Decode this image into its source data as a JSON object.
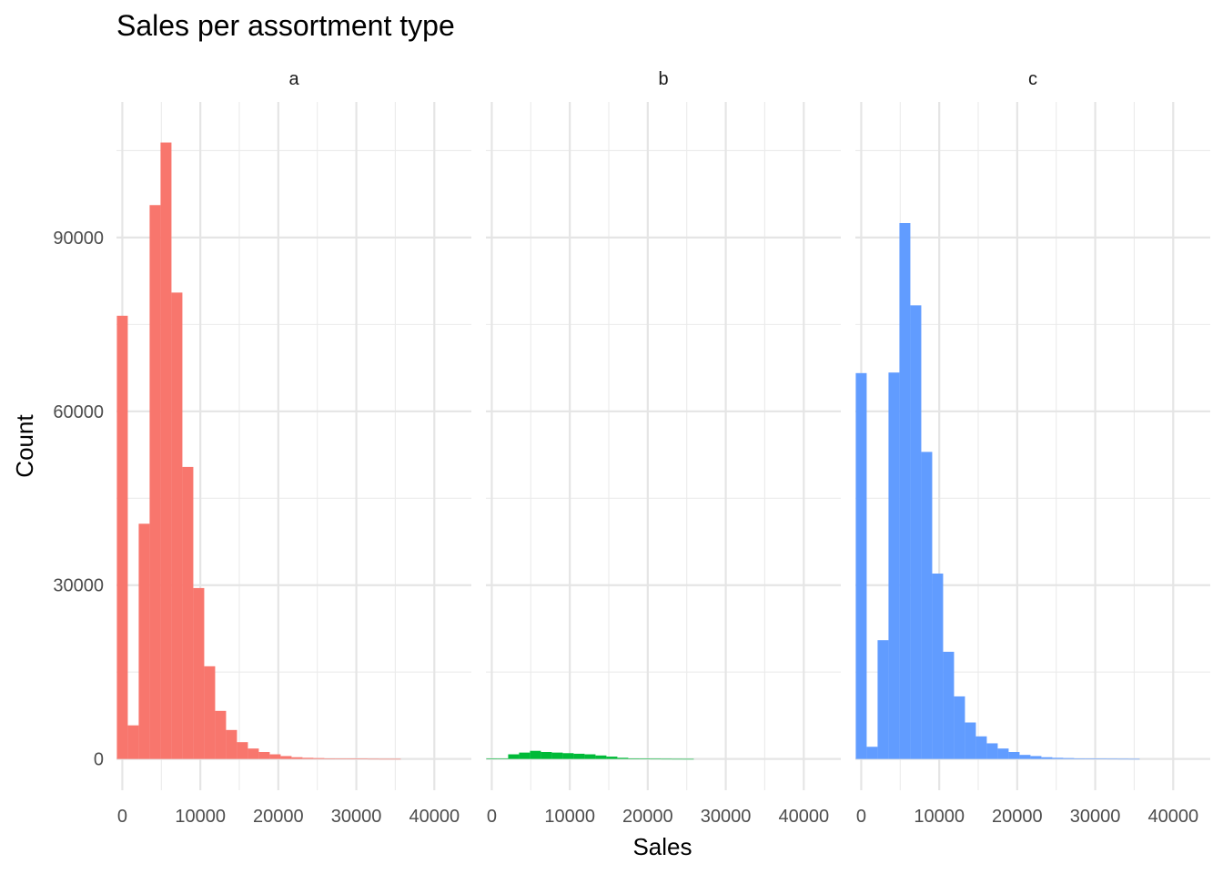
{
  "chart_data": {
    "type": "bar",
    "title": "Sales per assortment type",
    "xlabel": "Sales",
    "ylabel": "Count",
    "xlim": [
      -750,
      44750
    ],
    "ylim": [
      -5400,
      113400
    ],
    "x_ticks": [
      0,
      10000,
      20000,
      30000,
      40000
    ],
    "x_tick_labels": [
      "0",
      "10000",
      "20000",
      "30000",
      "40000"
    ],
    "y_ticks": [
      0,
      30000,
      60000,
      90000
    ],
    "y_tick_labels": [
      "0",
      "30000",
      "60000",
      "90000"
    ],
    "grid": true,
    "bin_width": 1400,
    "bin_starts": [
      -700,
      700,
      2100,
      3500,
      4900,
      6300,
      7700,
      9100,
      10500,
      11900,
      13300,
      14700,
      16100,
      17500,
      18900,
      20300,
      21700,
      23100,
      24500,
      25900,
      27300,
      28700,
      30100,
      31500,
      32900,
      34300
    ],
    "panels": [
      {
        "label": "a",
        "color": "#F8766D",
        "values": [
          76500,
          5800,
          40600,
          95600,
          106400,
          80500,
          50400,
          29500,
          16000,
          8300,
          5000,
          2900,
          1800,
          1200,
          800,
          500,
          300,
          200,
          150,
          100,
          70,
          50,
          40,
          20,
          10,
          10
        ]
      },
      {
        "label": "b",
        "color": "#00BA38",
        "values": [
          100,
          50,
          800,
          1100,
          1400,
          1200,
          1100,
          1000,
          900,
          800,
          600,
          400,
          200,
          100,
          50,
          30,
          20,
          10,
          5,
          0,
          0,
          0,
          0,
          0,
          0,
          0
        ]
      },
      {
        "label": "c",
        "color": "#619CFF",
        "values": [
          66600,
          2100,
          20500,
          66700,
          92500,
          78300,
          53000,
          32000,
          18500,
          10800,
          6300,
          3900,
          2700,
          1800,
          1200,
          700,
          500,
          300,
          200,
          150,
          100,
          70,
          50,
          30,
          20,
          10
        ]
      }
    ]
  }
}
